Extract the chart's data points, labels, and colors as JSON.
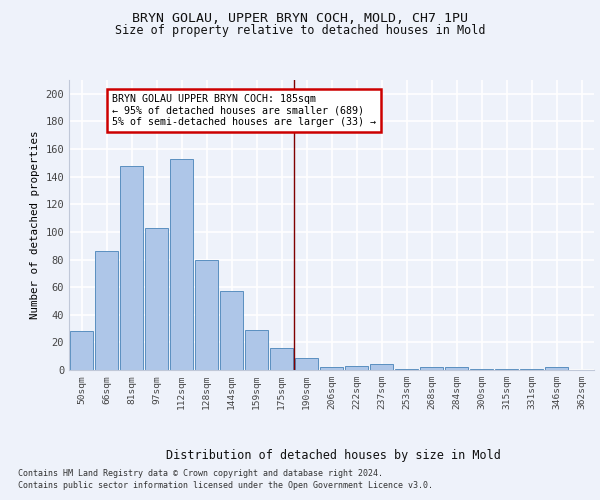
{
  "title1": "BRYN GOLAU, UPPER BRYN COCH, MOLD, CH7 1PU",
  "title2": "Size of property relative to detached houses in Mold",
  "xlabel": "Distribution of detached houses by size in Mold",
  "ylabel": "Number of detached properties",
  "categories": [
    "50sqm",
    "66sqm",
    "81sqm",
    "97sqm",
    "112sqm",
    "128sqm",
    "144sqm",
    "159sqm",
    "175sqm",
    "190sqm",
    "206sqm",
    "222sqm",
    "237sqm",
    "253sqm",
    "268sqm",
    "284sqm",
    "300sqm",
    "315sqm",
    "331sqm",
    "346sqm",
    "362sqm"
  ],
  "values": [
    28,
    86,
    148,
    103,
    153,
    80,
    57,
    29,
    16,
    9,
    2,
    3,
    4,
    1,
    2,
    2,
    1,
    1,
    1,
    2,
    0
  ],
  "bar_color": "#aec6e8",
  "bar_edge_color": "#5a8fc0",
  "vline_color": "#800000",
  "annotation_title": "BRYN GOLAU UPPER BRYN COCH: 185sqm",
  "annotation_line1": "← 95% of detached houses are smaller (689)",
  "annotation_line2": "5% of semi-detached houses are larger (33) →",
  "annotation_box_color": "#ffffff",
  "annotation_box_edge": "#cc0000",
  "bg_color": "#eef2fa",
  "grid_color": "#ffffff",
  "footer1": "Contains HM Land Registry data © Crown copyright and database right 2024.",
  "footer2": "Contains public sector information licensed under the Open Government Licence v3.0.",
  "ylim": [
    0,
    210
  ],
  "yticks": [
    0,
    20,
    40,
    60,
    80,
    100,
    120,
    140,
    160,
    180,
    200
  ]
}
